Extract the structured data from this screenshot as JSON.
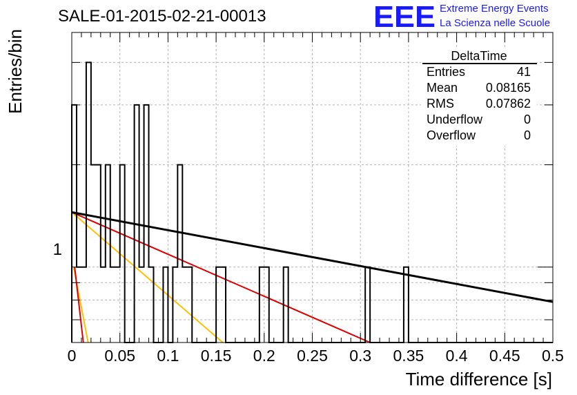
{
  "header": {
    "run_title": "SALE-01-2015-02-21-00013",
    "logo_letters": "EEE",
    "logo_line1": "Extreme Energy Events",
    "logo_line2": "La Scienza nelle Scuole"
  },
  "stats_box": {
    "title": "DeltaTime",
    "rows": [
      {
        "label": "Entries",
        "value": "41"
      },
      {
        "label": "Mean",
        "value": "0.08165"
      },
      {
        "label": "RMS",
        "value": "0.07862"
      },
      {
        "label": "Underflow",
        "value": "0"
      },
      {
        "label": "Overflow",
        "value": "0"
      }
    ]
  },
  "colors": {
    "histogram": "#000000",
    "fit_black": "#000000",
    "fit_red": "#dd0000",
    "fit_yellow": "#ffc000",
    "logo_blue": "#1a1aff"
  },
  "chart_data": {
    "type": "histogram",
    "title": "SALE-01-2015-02-21-00013",
    "xlabel": "Time difference [s]",
    "ylabel": "Entries/bin",
    "xlim": [
      0,
      0.5
    ],
    "ylim": [
      0.6,
      4.9
    ],
    "log_y": true,
    "grid": true,
    "bin_width": 0.005,
    "x_tick_labels": [
      "0",
      "0.05",
      "0.1",
      "0.15",
      "0.2",
      "0.25",
      "0.3",
      "0.35",
      "0.4",
      "0.45",
      "0.5"
    ],
    "y_tick_labels": [
      "1"
    ],
    "bins": [
      {
        "x": 0.0,
        "count": 3
      },
      {
        "x": 0.005,
        "count": 1
      },
      {
        "x": 0.01,
        "count": 1
      },
      {
        "x": 0.015,
        "count": 4
      },
      {
        "x": 0.02,
        "count": 2
      },
      {
        "x": 0.025,
        "count": 2
      },
      {
        "x": 0.03,
        "count": 1
      },
      {
        "x": 0.035,
        "count": 2
      },
      {
        "x": 0.04,
        "count": 1
      },
      {
        "x": 0.045,
        "count": 1
      },
      {
        "x": 0.05,
        "count": 2
      },
      {
        "x": 0.065,
        "count": 3
      },
      {
        "x": 0.07,
        "count": 1
      },
      {
        "x": 0.075,
        "count": 3
      },
      {
        "x": 0.08,
        "count": 1
      },
      {
        "x": 0.095,
        "count": 1
      },
      {
        "x": 0.105,
        "count": 1
      },
      {
        "x": 0.11,
        "count": 2
      },
      {
        "x": 0.115,
        "count": 1
      },
      {
        "x": 0.12,
        "count": 1
      },
      {
        "x": 0.15,
        "count": 1
      },
      {
        "x": 0.155,
        "count": 1
      },
      {
        "x": 0.195,
        "count": 1
      },
      {
        "x": 0.2,
        "count": 1
      },
      {
        "x": 0.22,
        "count": 1
      },
      {
        "x": 0.305,
        "count": 1
      },
      {
        "x": 0.345,
        "count": 1
      }
    ],
    "fits": [
      {
        "color": "black",
        "points": [
          [
            0,
            1.45
          ],
          [
            0.5,
            0.79
          ]
        ]
      },
      {
        "color": "red",
        "points": [
          [
            0,
            1.45
          ],
          [
            0.31,
            0.6
          ]
        ]
      },
      {
        "color": "yellow",
        "points": [
          [
            0,
            1.45
          ],
          [
            0.157,
            0.6
          ]
        ]
      },
      {
        "color": "yellow",
        "points": [
          [
            0.002,
            1.0
          ],
          [
            0.017,
            0.6
          ]
        ]
      },
      {
        "color": "red",
        "points": [
          [
            0.003,
            1.0
          ],
          [
            0.012,
            0.6
          ]
        ]
      }
    ]
  }
}
